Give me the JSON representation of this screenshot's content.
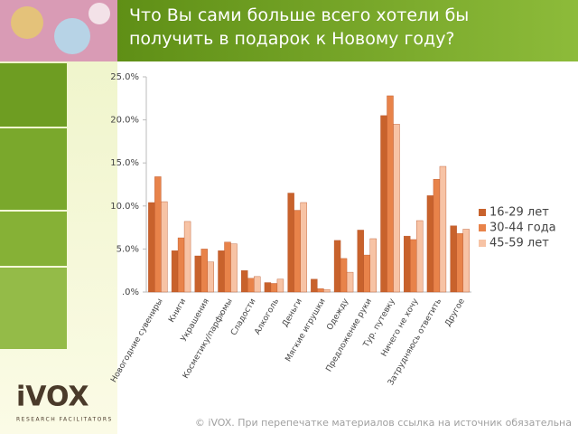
{
  "chart_data": {
    "type": "bar",
    "title": "Что Вы сами больше всего хотели бы получить в подарок к Новому году?",
    "categories": [
      "Новогодние сувениры",
      "Книги",
      "Украшения",
      "Косметику/парфюмы",
      "Сладости",
      "Алкоголь",
      "Деньги",
      "Мягкие игрушки",
      "Одежду",
      "Предложение руки",
      "Тур. путевку",
      "Ничего не хочу",
      "Затрудняюсь ответить",
      "Другое"
    ],
    "series": [
      {
        "name": "16-29 лет",
        "color": "#c8622c",
        "values": [
          10.4,
          4.8,
          4.2,
          4.8,
          2.5,
          1.1,
          11.5,
          1.5,
          6.0,
          7.2,
          20.5,
          6.5,
          11.2,
          7.7
        ]
      },
      {
        "name": "30-44 года",
        "color": "#e8834a",
        "values": [
          13.4,
          6.3,
          5.0,
          5.8,
          1.6,
          1.0,
          9.5,
          0.4,
          3.9,
          4.3,
          22.8,
          6.1,
          13.1,
          6.8
        ]
      },
      {
        "name": "45-59 лет",
        "color": "#f7c3a5",
        "values": [
          10.5,
          8.2,
          3.5,
          5.6,
          1.8,
          1.5,
          10.4,
          0.3,
          2.3,
          6.2,
          19.5,
          8.3,
          14.6,
          7.3
        ]
      }
    ],
    "ylim": [
      0,
      25
    ],
    "yticks": [
      {
        "value": 0,
        "label": ".0%"
      },
      {
        "value": 5,
        "label": "5.0%"
      },
      {
        "value": 10,
        "label": "10.0%"
      },
      {
        "value": 15,
        "label": "15.0%"
      },
      {
        "value": 20,
        "label": "20.0%"
      },
      {
        "value": 25,
        "label": "25.0%"
      }
    ],
    "grid": false,
    "legend": "right"
  },
  "logo": {
    "name": "iVOX",
    "tagline": "RESEARCH FACILITATORS"
  },
  "footer": "© iVOX. При перепечатке материалов ссылка на источник обязательна"
}
